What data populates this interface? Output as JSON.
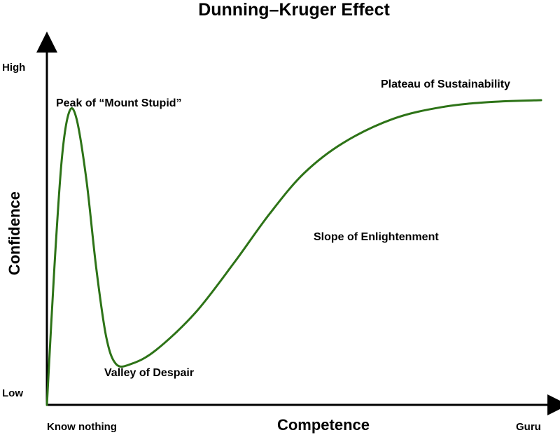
{
  "chart_data": {
    "type": "line",
    "title": "Dunning–Kruger Effect",
    "xlabel": "Competence",
    "ylabel": "Confidence",
    "x_tick_labels": {
      "start": "Know nothing",
      "end": "Guru"
    },
    "y_tick_labels": {
      "start": "Low",
      "end": "High"
    },
    "xlim": [
      0,
      100
    ],
    "ylim": [
      0,
      100
    ],
    "grid": false,
    "series_color": "#2d7317",
    "series": [
      {
        "values": [
          [
            0,
            0
          ],
          [
            1.5,
            40
          ],
          [
            3,
            72
          ],
          [
            4.5,
            86
          ],
          [
            6,
            84
          ],
          [
            8,
            66
          ],
          [
            10,
            40
          ],
          [
            12,
            20
          ],
          [
            14,
            12
          ],
          [
            17,
            12
          ],
          [
            22,
            16
          ],
          [
            30,
            27
          ],
          [
            38,
            42
          ],
          [
            45,
            56
          ],
          [
            52,
            68
          ],
          [
            60,
            77
          ],
          [
            70,
            84
          ],
          [
            80,
            87.5
          ],
          [
            90,
            89
          ],
          [
            100,
            89.5
          ]
        ]
      }
    ],
    "annotations": [
      {
        "id": "peak",
        "text": "Peak of “Mount Stupid”",
        "x": 4.5,
        "y": 86
      },
      {
        "id": "valley",
        "text": "Valley of Despair",
        "x": 17,
        "y": 12
      },
      {
        "id": "slope",
        "text": "Slope of Enlightenment",
        "x": 52,
        "y": 68
      },
      {
        "id": "plateau",
        "text": "Plateau of Sustainability",
        "x": 90,
        "y": 89
      }
    ]
  }
}
